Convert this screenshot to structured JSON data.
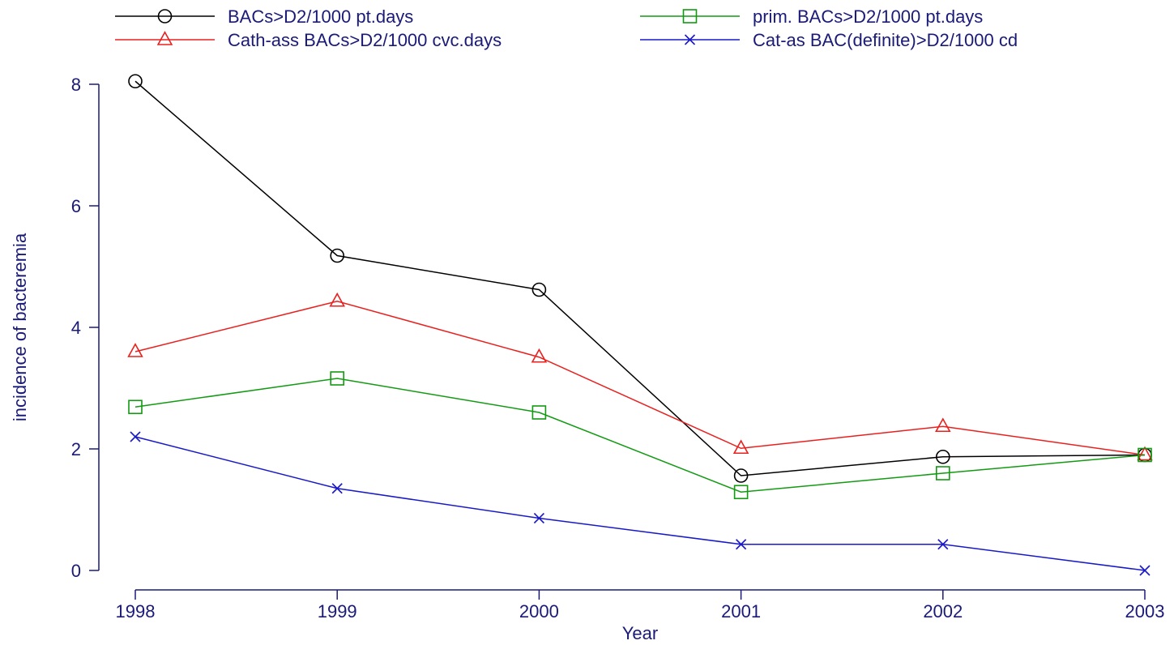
{
  "chart_data": {
    "type": "line",
    "title": "",
    "xlabel": "Year",
    "ylabel": "incidence of bacteremia",
    "xlim": [
      1998,
      2003
    ],
    "ylim": [
      0,
      8
    ],
    "x": [
      1998,
      1999,
      2000,
      2001,
      2002,
      2003
    ],
    "x_tick_labels": [
      "1998",
      "1999",
      "2000",
      "2001",
      "2002",
      "2003"
    ],
    "y_ticks": [
      0,
      2,
      4,
      6,
      8
    ],
    "y_tick_labels": [
      "0",
      "2",
      "4",
      "6",
      "8"
    ],
    "grid": false,
    "legend_position": "top",
    "series": [
      {
        "name": "BACs>D2/1000 pt.days",
        "color": "#000000",
        "marker": "circle",
        "values": [
          8.05,
          5.18,
          4.62,
          1.56,
          1.87,
          1.9
        ]
      },
      {
        "name": "Cath-ass BACs>D2/1000 cvc.days",
        "color": "#e8201e",
        "marker": "triangle",
        "values": [
          3.6,
          4.43,
          3.51,
          2.01,
          2.37,
          1.9
        ]
      },
      {
        "name": "prim. BACs>D2/1000 pt.days",
        "color": "#139a13",
        "marker": "square",
        "values": [
          2.69,
          3.16,
          2.6,
          1.29,
          1.6,
          1.9
        ]
      },
      {
        "name": "Cat-as BAC(definite)>D2/1000 cd",
        "color": "#1919c8",
        "marker": "x",
        "values": [
          2.2,
          1.35,
          0.86,
          0.43,
          0.43,
          0.0
        ]
      }
    ]
  }
}
